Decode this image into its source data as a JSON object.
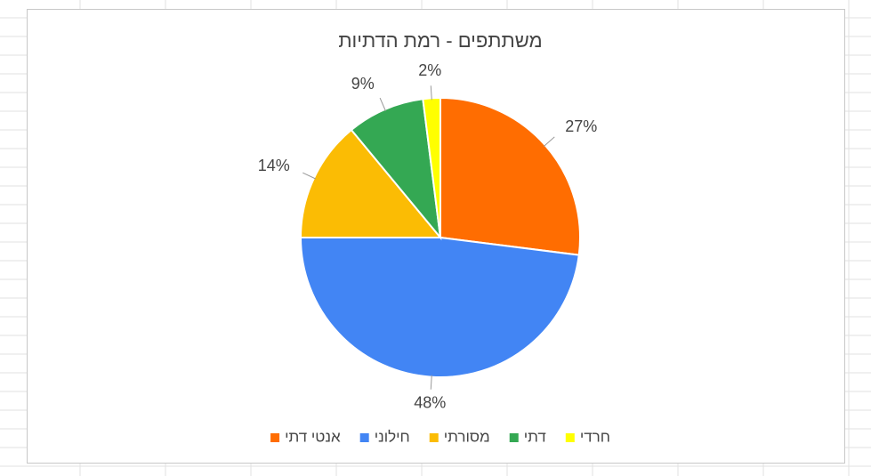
{
  "chart_data": {
    "type": "pie",
    "title": "משתתפים - רמת הדתיות",
    "categories": [
      "אנטי דתי",
      "חילוני",
      "מסורתי",
      "דתי",
      "חרדי"
    ],
    "values": [
      27,
      48,
      14,
      9,
      2
    ],
    "value_labels": [
      "27%",
      "48%",
      "14%",
      "9%",
      "2%"
    ],
    "colors": [
      "#ff6d01",
      "#4285f4",
      "#fbbc04",
      "#34a853",
      "#ffff00"
    ],
    "legend": "bottom"
  }
}
